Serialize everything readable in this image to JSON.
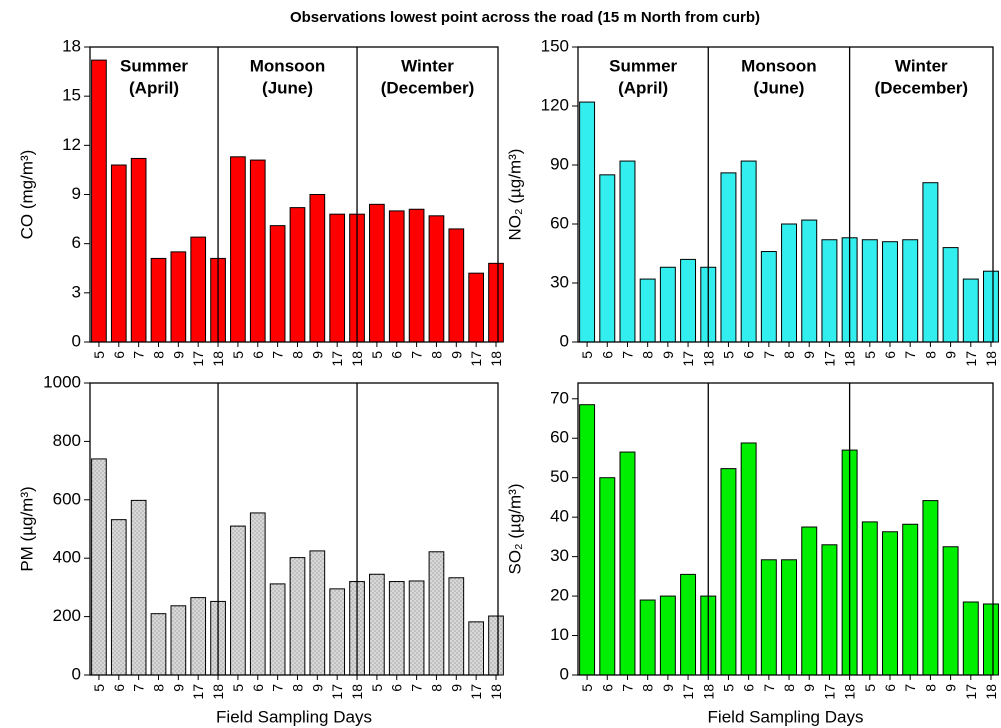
{
  "title": "Observations lowest point across the road (15 m North from curb)",
  "chart_data": [
    {
      "type": "bar",
      "ylabel": "CO (mg/m³)",
      "color": "#ff0000",
      "categories": [
        "5",
        "6",
        "7",
        "8",
        "9",
        "17",
        "18",
        "5",
        "6",
        "7",
        "8",
        "9",
        "17",
        "18",
        "5",
        "6",
        "7",
        "8",
        "9",
        "17",
        "18"
      ],
      "values": [
        17.2,
        10.8,
        11.2,
        5.1,
        5.5,
        6.4,
        5.1,
        11.3,
        11.1,
        7.1,
        8.2,
        9.0,
        7.8,
        7.8,
        8.4,
        8.0,
        8.1,
        7.7,
        6.9,
        4.2,
        4.8
      ],
      "ylim": [
        0,
        18
      ],
      "yticks": [
        0,
        3,
        6,
        9,
        12,
        15,
        18
      ],
      "annotations": [
        [
          "Summer",
          "(April)"
        ],
        [
          "Monsoon",
          "(June)"
        ],
        [
          "Winter",
          "(December)"
        ]
      ]
    },
    {
      "type": "bar",
      "ylabel": "NO₂ (µg/m³)",
      "color": "#33eeee",
      "categories": [
        "5",
        "6",
        "7",
        "8",
        "9",
        "17",
        "18",
        "5",
        "6",
        "7",
        "8",
        "9",
        "17",
        "18",
        "5",
        "6",
        "7",
        "8",
        "9",
        "17",
        "18"
      ],
      "values": [
        122,
        85,
        92,
        32,
        38,
        42,
        38,
        86,
        92,
        46,
        60,
        62,
        52,
        53,
        52,
        51,
        52,
        81,
        48,
        32,
        36
      ],
      "ylim": [
        0,
        150
      ],
      "yticks": [
        0,
        30,
        60,
        90,
        120,
        150
      ],
      "annotations": [
        [
          "Summer",
          "(April)"
        ],
        [
          "Monsoon",
          "(June)"
        ],
        [
          "Winter",
          "(December)"
        ]
      ]
    },
    {
      "type": "bar",
      "ylabel": "PM (µg/m³)",
      "xlabel": "Field Sampling Days",
      "color": "#d8d8d8",
      "pattern": "dots",
      "categories": [
        "5",
        "6",
        "7",
        "8",
        "9",
        "17",
        "18",
        "5",
        "6",
        "7",
        "8",
        "9",
        "17",
        "18",
        "5",
        "6",
        "7",
        "8",
        "9",
        "17",
        "18"
      ],
      "values": [
        740,
        532,
        598,
        210,
        237,
        265,
        252,
        510,
        555,
        312,
        402,
        425,
        295,
        320,
        345,
        320,
        322,
        422,
        333,
        182,
        202
      ],
      "ylim": [
        0,
        1000
      ],
      "yticks": [
        0,
        200,
        400,
        600,
        800,
        1000
      ]
    },
    {
      "type": "bar",
      "ylabel": "SO₂ (µg/m³)",
      "xlabel": "Field Sampling Days",
      "color": "#00ee00",
      "categories": [
        "5",
        "6",
        "7",
        "8",
        "9",
        "17",
        "18",
        "5",
        "6",
        "7",
        "8",
        "9",
        "17",
        "18",
        "5",
        "6",
        "7",
        "8",
        "9",
        "17",
        "18"
      ],
      "values": [
        68.5,
        50,
        56.5,
        19,
        20,
        25.5,
        20,
        52.3,
        58.8,
        29.2,
        29.2,
        37.5,
        33,
        57,
        38.8,
        36.3,
        38.2,
        44.2,
        32.5,
        18.5,
        18
      ],
      "ylim": [
        0,
        74
      ],
      "yticks": [
        0,
        10,
        20,
        30,
        40,
        50,
        60,
        70
      ]
    }
  ]
}
